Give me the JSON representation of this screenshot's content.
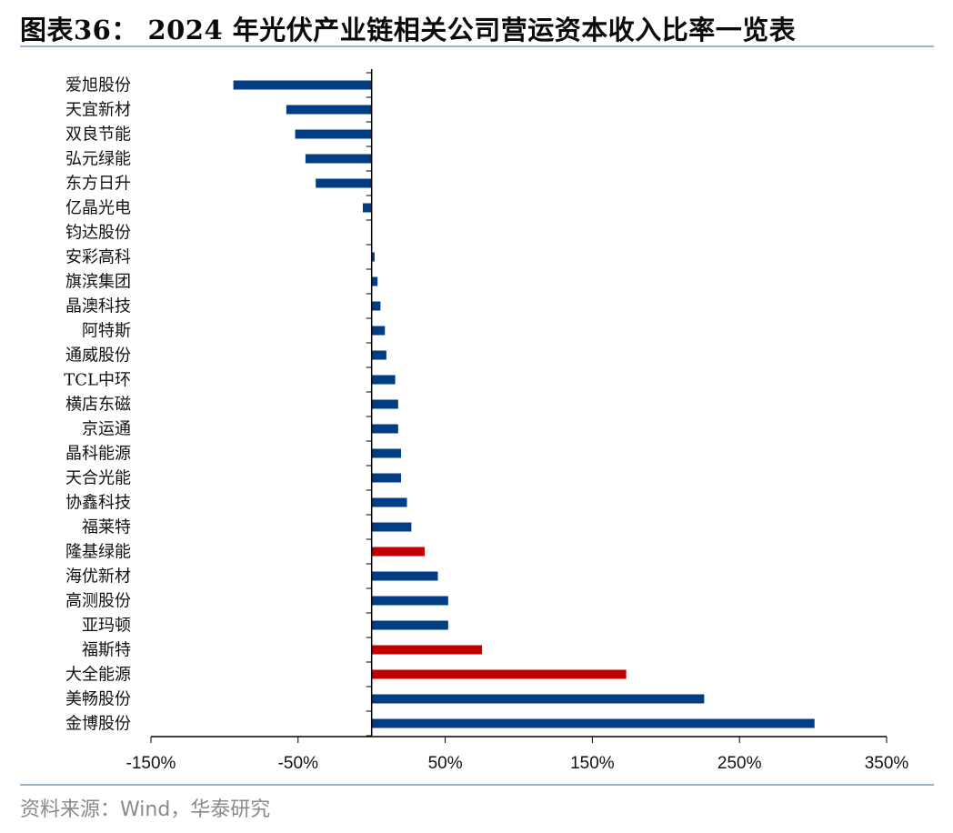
{
  "title": "图表36： 2024 年光伏产业链相关公司营运资本收入比率一览表",
  "source": "资料来源：Wind，华泰研究",
  "colors": {
    "highlight": "#c00000",
    "default": "#003d85"
  },
  "chart_data": {
    "type": "bar",
    "orientation": "horizontal",
    "xlim": [
      -150,
      350
    ],
    "ticks": [
      -150,
      -50,
      50,
      150,
      250,
      350
    ],
    "tick_labels": [
      "-150%",
      "-50%",
      "50%",
      "150%",
      "250%",
      "350%"
    ],
    "categories": [
      "爱旭股份",
      "天宜新材",
      "双良节能",
      "弘元绿能",
      "东方日升",
      "亿晶光电",
      "钧达股份",
      "安彩高科",
      "旗滨集团",
      "晶澳科技",
      "阿特斯",
      "通威股份",
      "TCL中环",
      "横店东磁",
      "京运通",
      "晶科能源",
      "天合光能",
      "协鑫科技",
      "福莱特",
      "隆基绿能",
      "海优新材",
      "高测股份",
      "亚玛顿",
      "福斯特",
      "大全能源",
      "美畅股份",
      "金博股份"
    ],
    "values": [
      -94,
      -58,
      -52,
      -45,
      -38,
      -6,
      0,
      2,
      4,
      6,
      9,
      10,
      16,
      18,
      18,
      20,
      20,
      24,
      27,
      36,
      45,
      52,
      52,
      75,
      173,
      226,
      301
    ],
    "highlighted": [
      "隆基绿能",
      "福斯特",
      "大全能源"
    ],
    "title": "",
    "xlabel": "",
    "ylabel": "",
    "grid": false,
    "legend": "none"
  }
}
